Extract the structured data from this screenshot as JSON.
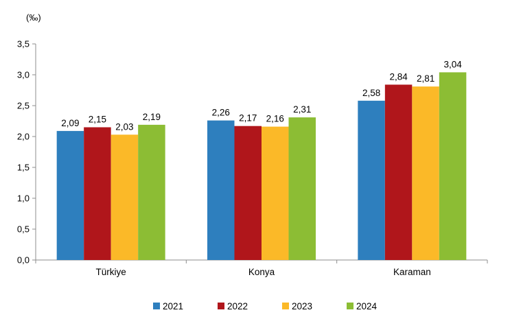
{
  "chart_data": {
    "type": "bar",
    "unit_label": "(‰)",
    "categories": [
      "Türkiye",
      "Konya",
      "Karaman"
    ],
    "series": [
      {
        "name": "2021",
        "color": "#2e7fbe",
        "values": [
          2.09,
          2.26,
          2.58
        ],
        "labels": [
          "2,09",
          "2,26",
          "2,58"
        ]
      },
      {
        "name": "2022",
        "color": "#b0161b",
        "values": [
          2.15,
          2.17,
          2.84
        ],
        "labels": [
          "2,15",
          "2,17",
          "2,84"
        ]
      },
      {
        "name": "2023",
        "color": "#fbb928",
        "values": [
          2.03,
          2.16,
          2.81
        ],
        "labels": [
          "2,03",
          "2,16",
          "2,81"
        ]
      },
      {
        "name": "2024",
        "color": "#8cbd34",
        "values": [
          2.19,
          2.31,
          3.04
        ],
        "labels": [
          "2,19",
          "2,31",
          "3,04"
        ]
      }
    ],
    "ylim": [
      0,
      3.5
    ],
    "yticks": [
      0,
      0.5,
      1.0,
      1.5,
      2.0,
      2.5,
      3.0,
      3.5
    ],
    "ytick_labels": [
      "0,0",
      "0,5",
      "1,0",
      "1,5",
      "2,0",
      "2,5",
      "3,0",
      "3,5"
    ],
    "grid": false,
    "legend_position": "bottom"
  }
}
